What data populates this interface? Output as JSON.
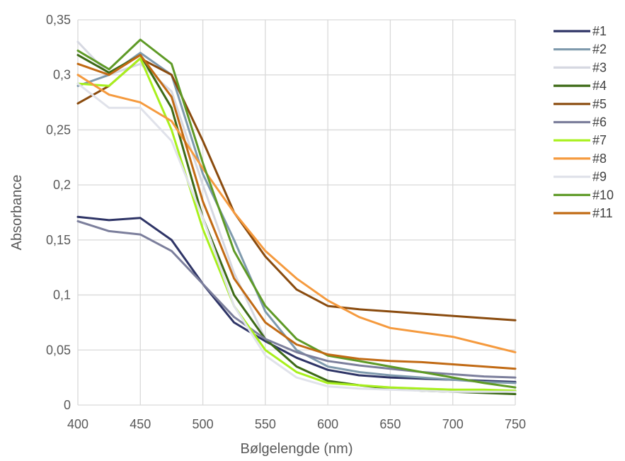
{
  "chart_data": {
    "type": "line",
    "xlabel": "Bølgelengde (nm)",
    "ylabel": "Absorbance",
    "xlim": [
      400,
      750
    ],
    "ylim": [
      0,
      0.35
    ],
    "x_ticks": [
      400,
      450,
      500,
      550,
      600,
      650,
      700,
      750
    ],
    "y_ticks": [
      0,
      0.05,
      0.1,
      0.15,
      0.2,
      0.25,
      0.3,
      0.35
    ],
    "y_tick_labels": [
      "0",
      "0,05",
      "0,1",
      "0,15",
      "0,2",
      "0,25",
      "0,3",
      "0,35"
    ],
    "grid": true,
    "legend_position": "right",
    "x": [
      400,
      425,
      450,
      475,
      500,
      525,
      550,
      575,
      600,
      625,
      650,
      675,
      700,
      725,
      750
    ],
    "series": [
      {
        "name": "#1",
        "color": "#2e3466",
        "values": [
          0.171,
          0.168,
          0.17,
          0.15,
          0.11,
          0.075,
          0.058,
          0.043,
          0.032,
          0.027,
          0.025,
          0.024,
          0.023,
          0.022,
          0.021
        ]
      },
      {
        "name": "#2",
        "color": "#7f9aad",
        "values": [
          0.29,
          0.3,
          0.32,
          0.3,
          0.21,
          0.15,
          0.085,
          0.05,
          0.035,
          0.03,
          0.027,
          0.025,
          0.023,
          0.021,
          0.02
        ]
      },
      {
        "name": "#3",
        "color": "#d6d8e1",
        "values": [
          0.33,
          0.3,
          0.31,
          0.285,
          0.2,
          0.12,
          0.06,
          0.035,
          0.022,
          0.018,
          0.016,
          0.015,
          0.014,
          0.013,
          0.013
        ]
      },
      {
        "name": "#4",
        "color": "#3d6a16",
        "values": [
          0.318,
          0.302,
          0.318,
          0.27,
          0.17,
          0.1,
          0.06,
          0.035,
          0.022,
          0.018,
          0.015,
          0.013,
          0.012,
          0.011,
          0.01
        ]
      },
      {
        "name": "#5",
        "color": "#8a4b0e",
        "values": [
          0.274,
          0.29,
          0.315,
          0.3,
          0.24,
          0.175,
          0.135,
          0.105,
          0.09,
          0.087,
          0.085,
          0.083,
          0.081,
          0.079,
          0.077
        ]
      },
      {
        "name": "#6",
        "color": "#7c7f9c",
        "values": [
          0.167,
          0.158,
          0.155,
          0.14,
          0.11,
          0.08,
          0.06,
          0.048,
          0.04,
          0.036,
          0.033,
          0.03,
          0.028,
          0.026,
          0.025
        ]
      },
      {
        "name": "#7",
        "color": "#a8f01c",
        "values": [
          0.292,
          0.29,
          0.315,
          0.25,
          0.16,
          0.09,
          0.05,
          0.03,
          0.02,
          0.018,
          0.016,
          0.015,
          0.014,
          0.014,
          0.013
        ]
      },
      {
        "name": "#8",
        "color": "#f59a3e",
        "values": [
          0.3,
          0.282,
          0.275,
          0.258,
          0.215,
          0.175,
          0.14,
          0.115,
          0.095,
          0.08,
          0.07,
          0.066,
          0.062,
          0.055,
          0.048
        ]
      },
      {
        "name": "#9",
        "color": "#e0e2ea",
        "values": [
          0.292,
          0.27,
          0.27,
          0.24,
          0.17,
          0.09,
          0.045,
          0.025,
          0.017,
          0.015,
          0.014,
          0.013,
          0.012,
          0.012,
          0.012
        ]
      },
      {
        "name": "#10",
        "color": "#5e9a26",
        "values": [
          0.322,
          0.305,
          0.332,
          0.31,
          0.22,
          0.14,
          0.09,
          0.06,
          0.045,
          0.04,
          0.035,
          0.03,
          0.025,
          0.02,
          0.016
        ]
      },
      {
        "name": "#11",
        "color": "#c16a14",
        "values": [
          0.31,
          0.3,
          0.318,
          0.28,
          0.185,
          0.115,
          0.075,
          0.055,
          0.046,
          0.042,
          0.04,
          0.039,
          0.037,
          0.035,
          0.033
        ]
      }
    ]
  }
}
